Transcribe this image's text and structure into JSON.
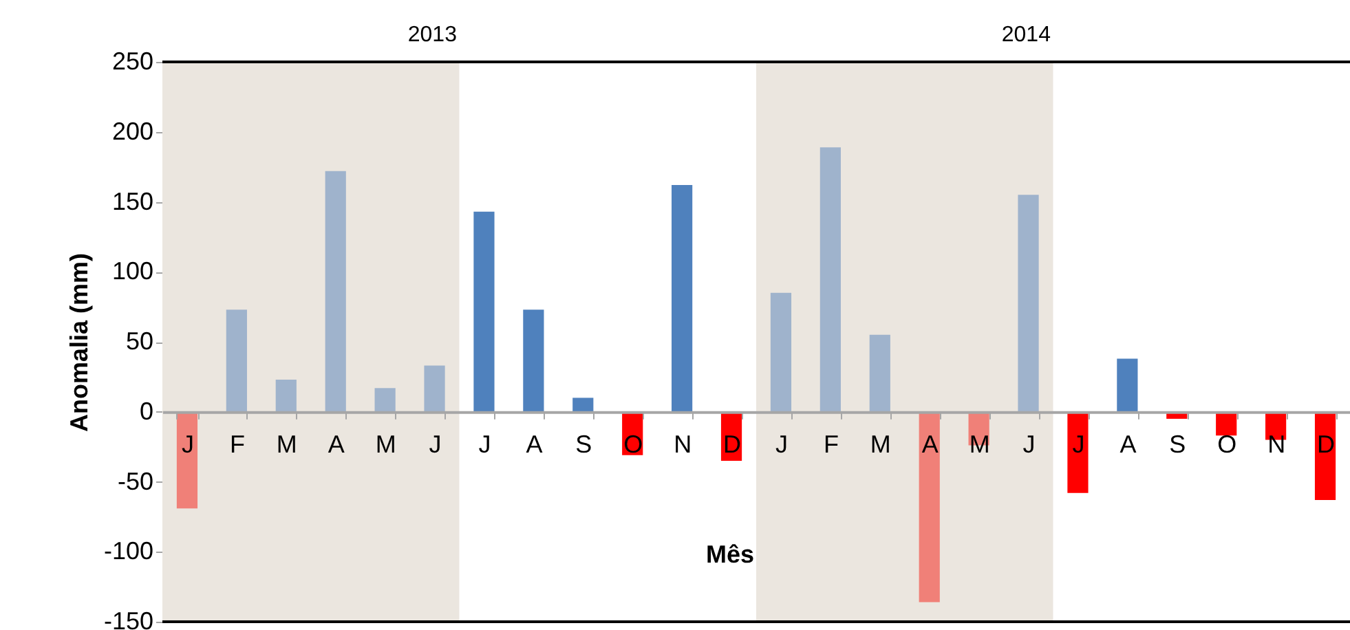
{
  "chart_data": {
    "type": "bar",
    "ylabel": "Anomalia (mm)",
    "xlabel": "Mês",
    "annotations": [
      "2013",
      "2014"
    ],
    "categories": [
      "J",
      "F",
      "M",
      "A",
      "M",
      "J",
      "J",
      "A",
      "S",
      "O",
      "N",
      "D",
      "J",
      "F",
      "M",
      "A",
      "M",
      "J",
      "J",
      "A",
      "S",
      "O",
      "N",
      "D"
    ],
    "values": [
      -69,
      73,
      23,
      172,
      17,
      33,
      143,
      73,
      10,
      -31,
      162,
      -35,
      85,
      189,
      55,
      -136,
      -24,
      155,
      -58,
      38,
      -5,
      -17,
      -20,
      -63
    ],
    "colors": [
      "#f08078",
      "#9fb3cc",
      "#9fb3cc",
      "#9fb3cc",
      "#9fb3cc",
      "#9fb3cc",
      "#4f81bd",
      "#4f81bd",
      "#4f81bd",
      "#ff0000",
      "#4f81bd",
      "#ff0000",
      "#9fb3cc",
      "#9fb3cc",
      "#9fb3cc",
      "#f08078",
      "#f08078",
      "#9fb3cc",
      "#ff0000",
      "#4f81bd",
      "#ff0000",
      "#ff0000",
      "#ff0000",
      "#ff0000"
    ],
    "ylim": [
      -150,
      250
    ],
    "yticks": [
      -150,
      -100,
      -50,
      0,
      50,
      100,
      150,
      200,
      250
    ],
    "grid": false
  }
}
